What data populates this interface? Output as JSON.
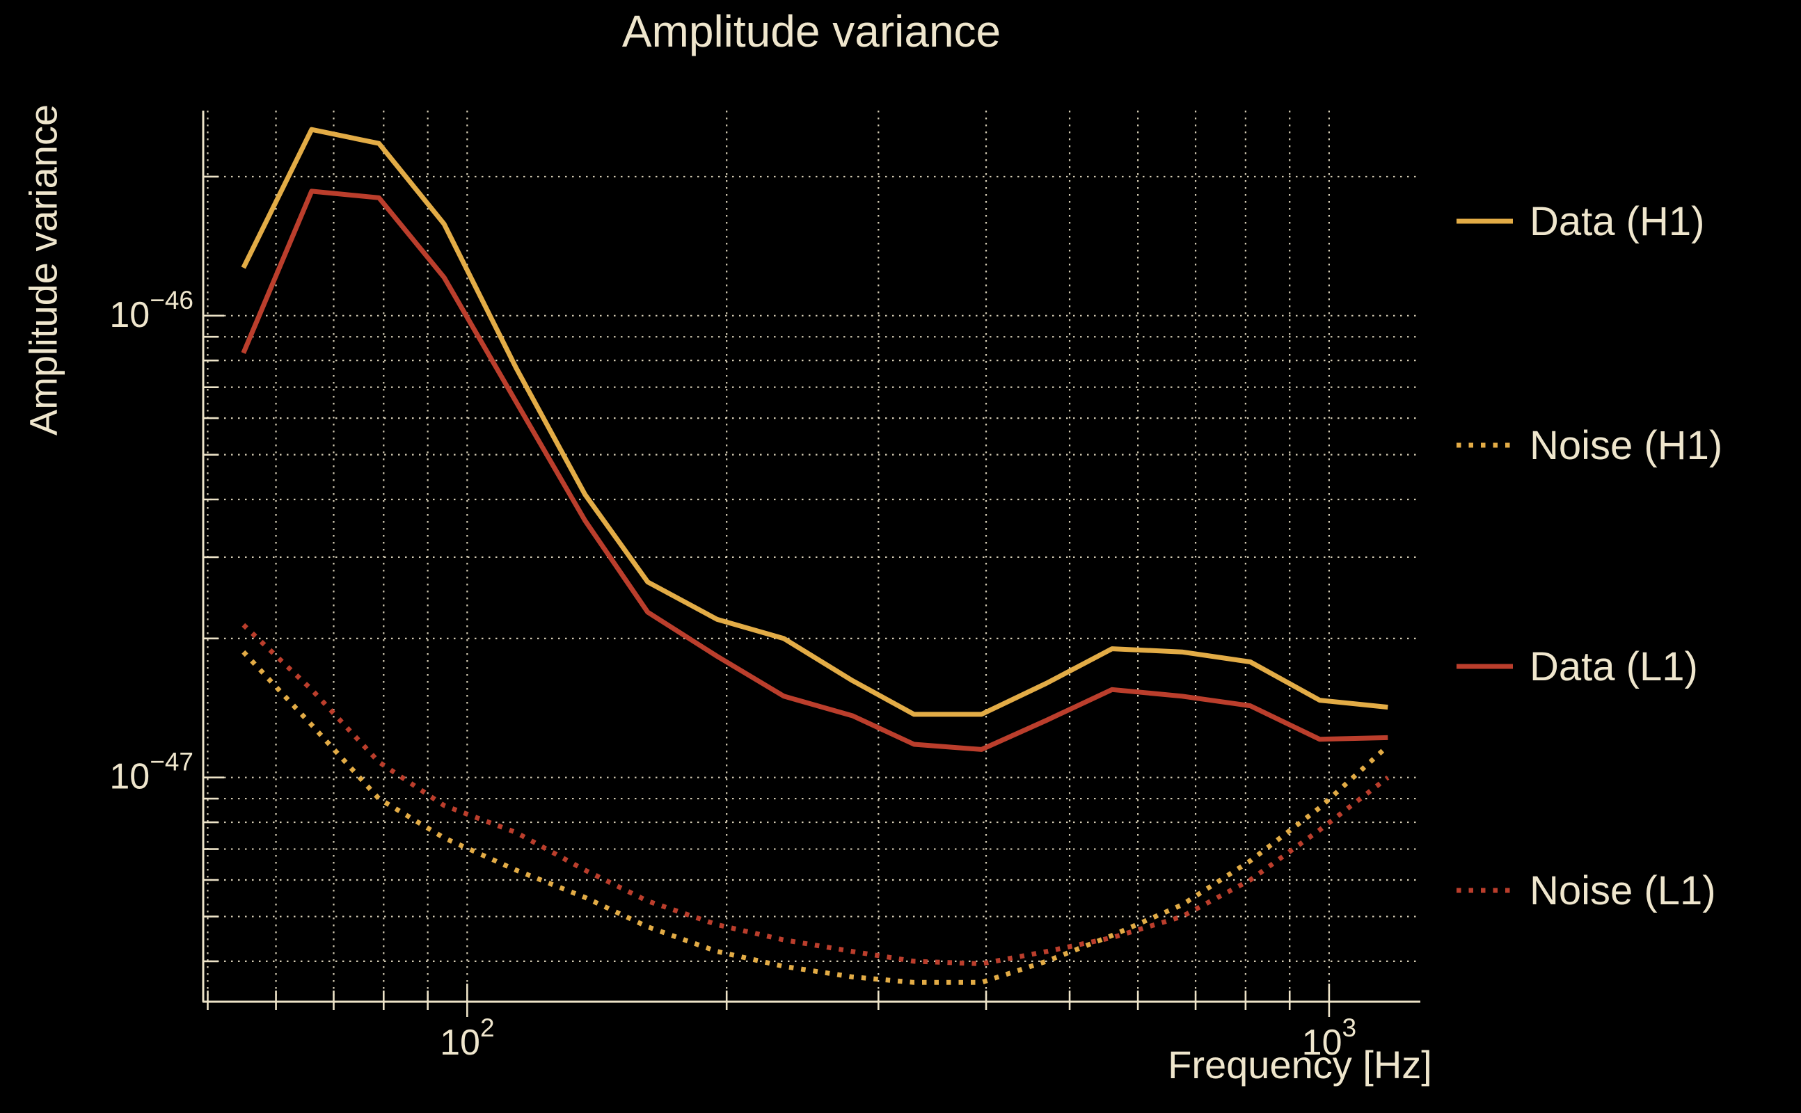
{
  "colors": {
    "background": "#000000",
    "text": "#EFE6CD",
    "grid": "#EDE3C8",
    "gold": "#E3AC46",
    "red": "#BB3E2C"
  },
  "chart_data": {
    "type": "line",
    "title": "Amplitude variance",
    "xlabel": "Frequency [Hz]",
    "ylabel": "Amplitude variance",
    "xscale": "log",
    "yscale": "log",
    "grid": true,
    "legend_position": "right",
    "xlim": [
      49.4,
      1276
    ],
    "ylim": [
      3.27e-48,
      2.78e-46
    ],
    "x": [
      55,
      66,
      79,
      94,
      114,
      137,
      162,
      195,
      233,
      280,
      330,
      395,
      470,
      560,
      675,
      810,
      975,
      1170
    ],
    "series": [
      {
        "name": "Data (H1)",
        "color": "#E3AC46",
        "linestyle": "solid",
        "values": [
          1.27e-46,
          2.53e-46,
          2.36e-46,
          1.58e-46,
          7.7e-47,
          4.1e-47,
          2.65e-47,
          2.2e-47,
          2e-47,
          1.62e-47,
          1.37e-47,
          1.37e-47,
          1.6e-47,
          1.9e-47,
          1.87e-47,
          1.78e-47,
          1.47e-47,
          1.42e-47
        ]
      },
      {
        "name": "Noise (H1)",
        "color": "#E3AC46",
        "linestyle": "dotted",
        "values": [
          1.87e-47,
          1.3e-47,
          9e-48,
          7.4e-48,
          6.3e-48,
          5.5e-48,
          4.75e-48,
          4.2e-48,
          3.9e-48,
          3.7e-48,
          3.6e-48,
          3.6e-48,
          4e-48,
          4.55e-48,
          5.3e-48,
          6.6e-48,
          8.6e-48,
          1.17e-47
        ]
      },
      {
        "name": "Data (L1)",
        "color": "#BB3E2C",
        "linestyle": "solid",
        "values": [
          8.3e-47,
          1.86e-46,
          1.8e-46,
          1.21e-46,
          6.5e-47,
          3.6e-47,
          2.28e-47,
          1.83e-47,
          1.5e-47,
          1.36e-47,
          1.18e-47,
          1.15e-47,
          1.33e-47,
          1.55e-47,
          1.5e-47,
          1.43e-47,
          1.21e-47,
          1.22e-47
        ]
      },
      {
        "name": "Noise (L1)",
        "color": "#BB3E2C",
        "linestyle": "dotted",
        "values": [
          2.14e-47,
          1.55e-47,
          1.08e-47,
          8.7e-48,
          7.6e-48,
          6.3e-48,
          5.4e-48,
          4.8e-48,
          4.45e-48,
          4.2e-48,
          4e-48,
          3.95e-48,
          4.2e-48,
          4.5e-48,
          5e-48,
          6e-48,
          7.7e-48,
          1e-47
        ]
      }
    ],
    "x_ticks_major": [
      {
        "f": 100,
        "base": "10",
        "exp": "2"
      },
      {
        "f": 1000,
        "base": "10",
        "exp": "3"
      }
    ],
    "x_ticks_minor": [
      50,
      60,
      70,
      80,
      90,
      200,
      300,
      400,
      500,
      600,
      700,
      800,
      900
    ],
    "y_ticks_major": [
      {
        "v": 1e-46,
        "base": "10",
        "exp": "−46"
      },
      {
        "v": 1e-47,
        "base": "10",
        "exp": "−47"
      }
    ],
    "y_ticks_minor": [
      2e-46,
      9e-47,
      8e-47,
      7e-47,
      6e-47,
      5e-47,
      4e-47,
      3e-47,
      2e-47,
      9e-48,
      8e-48,
      7e-48,
      6e-48,
      5e-48,
      4e-48
    ]
  }
}
